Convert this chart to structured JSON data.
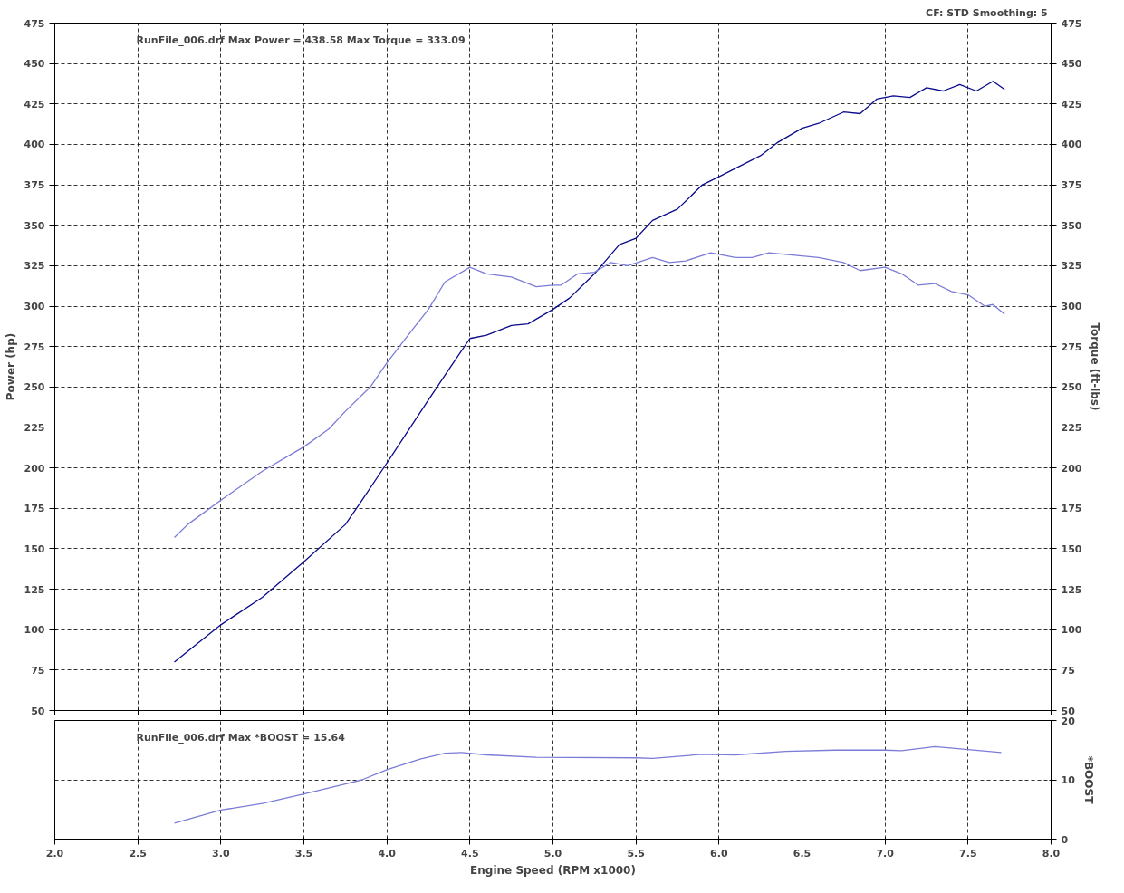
{
  "chart_data": [
    {
      "type": "line",
      "ylabel": "Power (hp)",
      "y2label": "Torque (ft-lbs)",
      "annotations": [
        "RunFile_006.drf Max Power = 438.58     Max Torque = 333.09",
        "CF: STD  Smoothing: 5"
      ],
      "xlim": [
        2,
        8
      ],
      "xticks": [
        2,
        2.5,
        3,
        3.5,
        4,
        4.5,
        5,
        5.5,
        6,
        6.5,
        7,
        7.5,
        8
      ],
      "ylim": [
        50,
        475
      ],
      "yticks": [
        50,
        75,
        100,
        125,
        150,
        175,
        200,
        225,
        250,
        275,
        300,
        325,
        350,
        375,
        400,
        425,
        450,
        475
      ],
      "y2lim": [
        50,
        475
      ],
      "y2ticks": [
        50,
        75,
        100,
        125,
        150,
        175,
        200,
        225,
        250,
        275,
        300,
        325,
        350,
        375,
        400,
        425,
        450,
        475
      ],
      "tick_labels": "y",
      "grid": true,
      "series": [
        {
          "color": "#0a0a8c",
          "x": [
            2.72,
            3.0,
            3.25,
            3.5,
            3.75,
            3.85,
            4.0,
            4.25,
            4.4,
            4.5,
            4.6,
            4.75,
            4.85,
            5.0,
            5.1,
            5.25,
            5.4,
            5.5,
            5.6,
            5.75,
            5.9,
            6.0,
            6.25,
            6.35,
            6.5,
            6.6,
            6.75,
            6.85,
            6.95,
            7.05,
            7.15,
            7.25,
            7.35,
            7.45,
            7.55,
            7.65,
            7.72
          ],
          "values": [
            80,
            103,
            120,
            142,
            165,
            180,
            203,
            242,
            265,
            280,
            282,
            288,
            289,
            298,
            305,
            320,
            338,
            342,
            353,
            360,
            375,
            380,
            393,
            401,
            410,
            413,
            420,
            419,
            428,
            430,
            429,
            435,
            433,
            437,
            433,
            439,
            434
          ]
        },
        {
          "color": "#7b7bd8",
          "x": [
            2.72,
            2.8,
            3.0,
            3.25,
            3.5,
            3.65,
            3.75,
            3.9,
            4.0,
            4.15,
            4.25,
            4.35,
            4.5,
            4.6,
            4.75,
            4.9,
            5.0,
            5.05,
            5.15,
            5.25,
            5.35,
            5.45,
            5.6,
            5.7,
            5.8,
            5.95,
            6.1,
            6.2,
            6.3,
            6.5,
            6.6,
            6.75,
            6.85,
            7.0,
            7.1,
            7.2,
            7.3,
            7.4,
            7.5,
            7.6,
            7.65,
            7.72
          ],
          "values": [
            157,
            165,
            180,
            198,
            213,
            224,
            235,
            250,
            265,
            285,
            298,
            315,
            324,
            320,
            318,
            312,
            313,
            313,
            320,
            321,
            327,
            325,
            330,
            327,
            328,
            333,
            330,
            330,
            333,
            331,
            330,
            327,
            322,
            324,
            320,
            313,
            314,
            309,
            307,
            300,
            301,
            295
          ]
        }
      ]
    },
    {
      "type": "line",
      "xlabel": "Engine Speed (RPM x1000)",
      "y2label": "*BOOST",
      "annotations": [
        "RunFile_006.drf Max *BOOST = 15.64"
      ],
      "xlim": [
        2,
        8
      ],
      "xticks": [
        {
          "value": 2,
          "label": "2.0"
        },
        {
          "value": 2.5,
          "label": "2.5"
        },
        {
          "value": 3,
          "label": "3.0"
        },
        {
          "value": 3.5,
          "label": "3.5"
        },
        {
          "value": 4,
          "label": "4.0"
        },
        {
          "value": 4.5,
          "label": "4.5"
        },
        {
          "value": 5,
          "label": "5.0"
        },
        {
          "value": 5.5,
          "label": "5.5"
        },
        {
          "value": 6,
          "label": "6.0"
        },
        {
          "value": 6.5,
          "label": "6.5"
        },
        {
          "value": 7,
          "label": "7.0"
        },
        {
          "value": 7.5,
          "label": "7.5"
        },
        {
          "value": 8,
          "label": "8.0"
        }
      ],
      "y2lim": [
        0,
        20
      ],
      "y2ticks": [
        0,
        10,
        20
      ],
      "grid": true,
      "series": [
        {
          "color": "#7b7bd8",
          "axis": "y2",
          "x": [
            2.72,
            3.0,
            3.25,
            3.5,
            3.75,
            3.85,
            4.0,
            4.2,
            4.35,
            4.45,
            4.6,
            4.9,
            5.5,
            5.6,
            5.9,
            6.1,
            6.4,
            6.7,
            7.0,
            7.1,
            7.3,
            7.5,
            7.7
          ],
          "values": [
            2.7,
            4.9,
            6,
            7.6,
            9.3,
            10,
            11.7,
            13.5,
            14.5,
            14.6,
            14.2,
            13.8,
            13.7,
            13.6,
            14.3,
            14.2,
            14.8,
            15.0,
            15.0,
            14.9,
            15.6,
            15.1,
            14.6
          ]
        }
      ]
    }
  ]
}
